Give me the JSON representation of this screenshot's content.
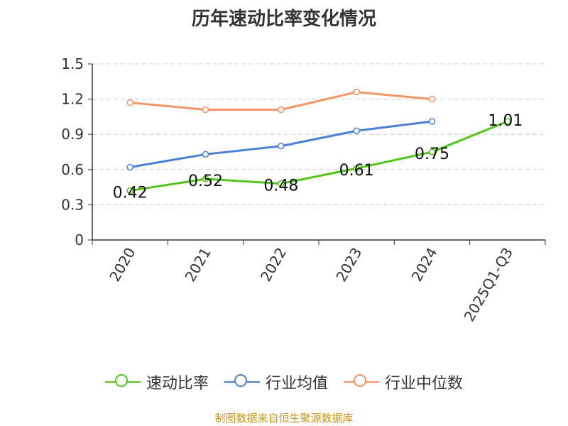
{
  "chart_data": {
    "type": "line",
    "title": "历年速动比率变化情况",
    "categories": [
      "2020",
      "2021",
      "2022",
      "2023",
      "2024",
      "2025Q1-Q3"
    ],
    "ylim": [
      0,
      1.5
    ],
    "yticks": [
      "0",
      "0.3",
      "0.6",
      "0.9",
      "1.2",
      "1.5"
    ],
    "grid": true,
    "legend_position": "bottom",
    "series": [
      {
        "name": "速动比率",
        "color": "#52c41a",
        "values": [
          0.42,
          0.52,
          0.48,
          0.61,
          0.75,
          1.01
        ],
        "labels": [
          "0.42",
          "0.52",
          "0.48",
          "0.61",
          "0.75",
          "1.01"
        ]
      },
      {
        "name": "行业均值",
        "color": "#4a7fd6",
        "values": [
          0.62,
          0.73,
          0.8,
          0.93,
          1.01,
          null
        ]
      },
      {
        "name": "行业中位数",
        "color": "#f59464",
        "values": [
          1.17,
          1.11,
          1.11,
          1.26,
          1.2,
          null
        ]
      }
    ]
  },
  "source": "制图数据来自恒生聚源数据库"
}
